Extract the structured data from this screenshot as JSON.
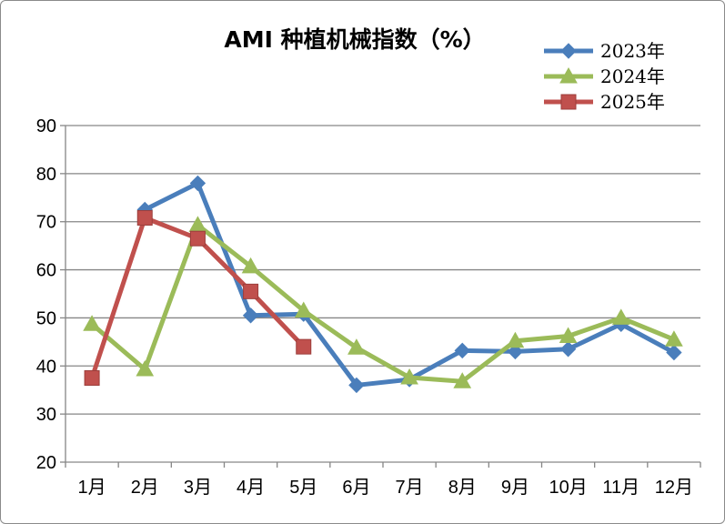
{
  "chart_data": {
    "type": "line",
    "title": "AMI 种植机械指数（%）",
    "categories": [
      "1月",
      "2月",
      "3月",
      "4月",
      "5月",
      "6月",
      "7月",
      "8月",
      "9月",
      "10月",
      "11月",
      "12月"
    ],
    "ylim": [
      20,
      90
    ],
    "yticks": [
      20,
      30,
      40,
      50,
      60,
      70,
      80,
      90
    ],
    "grid": true,
    "legend_position": "top-right",
    "series": [
      {
        "name": "2023年",
        "color": "#4a7ebb",
        "marker": "diamond",
        "values": [
          null,
          72.5,
          78.0,
          50.5,
          50.8,
          36.0,
          37.2,
          43.2,
          43.0,
          43.5,
          48.7,
          42.8
        ]
      },
      {
        "name": "2024年",
        "color": "#9bbb59",
        "marker": "triangle",
        "values": [
          48.7,
          39.3,
          69.3,
          60.7,
          51.5,
          43.8,
          37.6,
          36.8,
          45.2,
          46.2,
          50.0,
          45.5
        ]
      },
      {
        "name": "2025年",
        "color": "#c0504d",
        "marker": "square",
        "values": [
          37.5,
          70.8,
          66.5,
          55.5,
          44.0,
          null,
          null,
          null,
          null,
          null,
          null,
          null
        ]
      }
    ]
  }
}
